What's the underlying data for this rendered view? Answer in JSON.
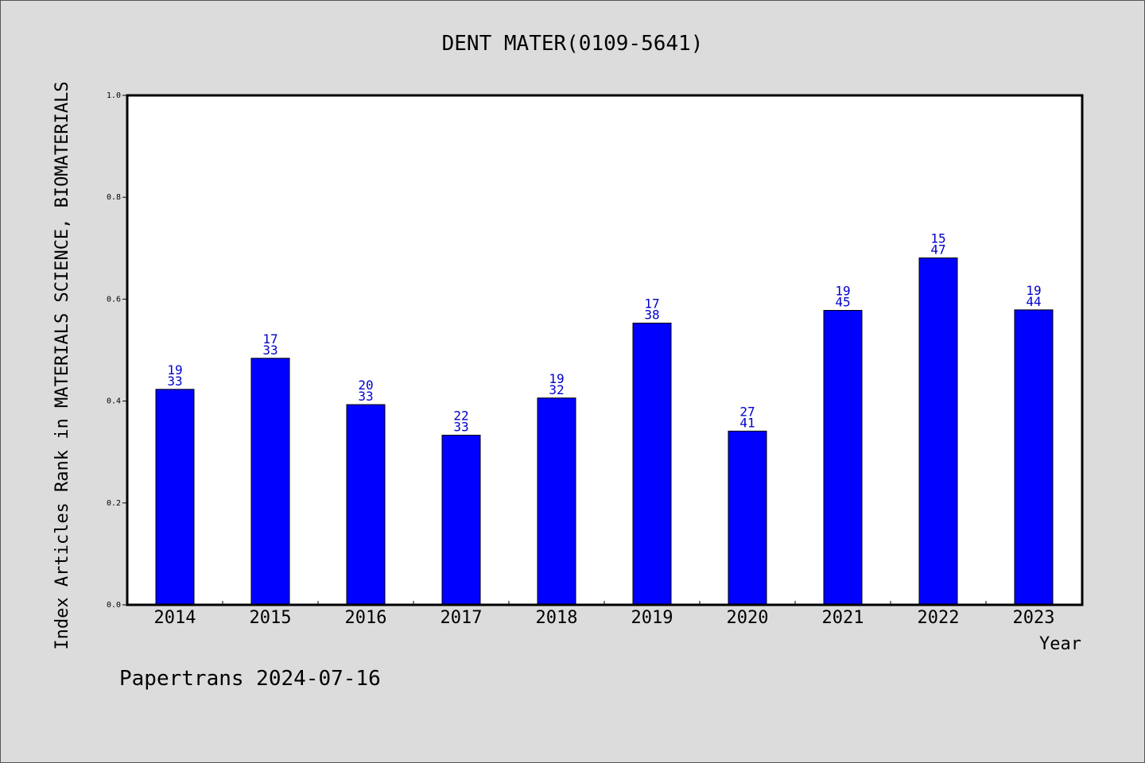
{
  "chart_data": {
    "type": "bar",
    "title": "DENT MATER(0109-5641)",
    "xlabel": "Year",
    "ylabel": "Index Articles Rank in MATERIALS SCIENCE, BIOMATERIALS",
    "categories": [
      "2014",
      "2015",
      "2016",
      "2017",
      "2018",
      "2019",
      "2020",
      "2021",
      "2022",
      "2023"
    ],
    "values": [
      0.423,
      0.484,
      0.393,
      0.333,
      0.406,
      0.553,
      0.341,
      0.578,
      0.681,
      0.579
    ],
    "labels_top": [
      "19",
      "17",
      "20",
      "22",
      "19",
      "17",
      "27",
      "19",
      "15",
      "19"
    ],
    "labels_bottom": [
      "33",
      "33",
      "33",
      "33",
      "32",
      "38",
      "41",
      "45",
      "47",
      "44"
    ],
    "ylim": [
      0,
      1.0
    ],
    "yticks": [
      "0.0",
      "0.2",
      "0.4",
      "0.6",
      "0.8",
      "1.0"
    ],
    "ytick_values": [
      0,
      0.2,
      0.4,
      0.6,
      0.8,
      1.0
    ],
    "bar_color": "#0000ff",
    "label_color": "#0000cc",
    "grid": false
  },
  "footer": {
    "text": "Papertrans 2024-07-16"
  }
}
